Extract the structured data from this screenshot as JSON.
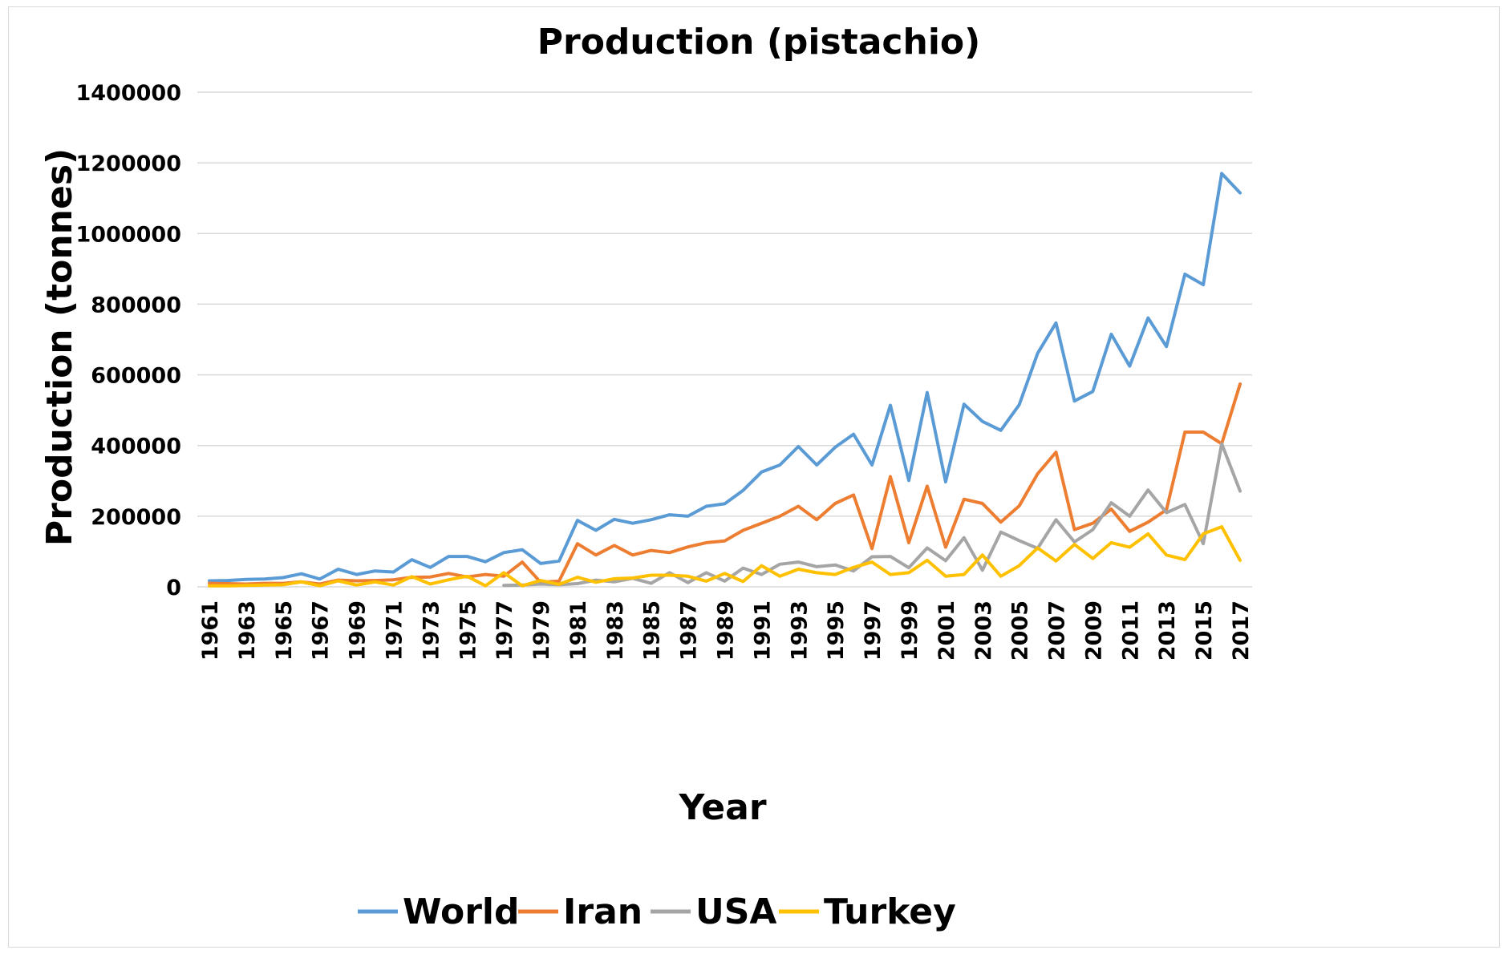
{
  "chart_data": {
    "type": "line",
    "title": "Production (pistachio)",
    "xlabel": "Year",
    "ylabel": "Production (tonnes)",
    "ylim": [
      0,
      1400000
    ],
    "yticks": [
      "0",
      "200000",
      "400000",
      "600000",
      "800000",
      "1000000",
      "1200000",
      "1400000"
    ],
    "xlim": [
      1961,
      2017
    ],
    "xticks": [
      "1961",
      "1963",
      "1965",
      "1967",
      "1969",
      "1971",
      "1973",
      "1975",
      "1977",
      "1979",
      "1981",
      "1983",
      "1985",
      "1987",
      "1989",
      "1991",
      "1993",
      "1995",
      "1997",
      "1999",
      "2001",
      "2003",
      "2005",
      "2007",
      "2009",
      "2011",
      "2013",
      "2015",
      "2017"
    ],
    "grid": "horizontal",
    "legend_position": "bottom",
    "series": [
      {
        "name": "World",
        "color": "#5b9bd5",
        "start_year": 1961,
        "values": [
          17000,
          18000,
          21000,
          22000,
          26000,
          37000,
          22000,
          50000,
          35000,
          45000,
          42000,
          77000,
          55000,
          86000,
          86000,
          71000,
          97000,
          105000,
          66000,
          73000,
          188000,
          160000,
          191000,
          180000,
          190000,
          204000,
          200000,
          228000,
          235000,
          273000,
          325000,
          345000,
          397000,
          345000,
          395000,
          432000,
          345000,
          514000,
          301000,
          550000,
          297000,
          517000,
          468000,
          443000,
          515000,
          661000,
          747000,
          526000,
          553000,
          715000,
          625000,
          761000,
          680000,
          885000,
          855000,
          1170000,
          1115000
        ]
      },
      {
        "name": "Iran",
        "color": "#ed7d31",
        "start_year": 1961,
        "values": [
          10000,
          9000,
          8000,
          10000,
          10000,
          14000,
          8000,
          19000,
          17000,
          18000,
          20000,
          27000,
          28000,
          38000,
          28000,
          35000,
          30000,
          70000,
          13000,
          16000,
          122000,
          90000,
          117000,
          90000,
          103000,
          97000,
          113000,
          125000,
          130000,
          160000,
          180000,
          200000,
          228000,
          190000,
          236000,
          260000,
          108000,
          312000,
          125000,
          285000,
          112000,
          248000,
          236000,
          183000,
          229000,
          320000,
          381000,
          162000,
          180000,
          220000,
          157000,
          183000,
          218000,
          438000,
          438000,
          405000,
          574000
        ]
      },
      {
        "name": "USA",
        "color": "#a5a5a5",
        "start_year": 1977,
        "values": [
          4000,
          5000,
          8000,
          6000,
          9000,
          19000,
          14000,
          24000,
          10000,
          40000,
          12000,
          40000,
          16000,
          53000,
          35000,
          64000,
          70000,
          57000,
          62000,
          45000,
          85000,
          86000,
          54000,
          110000,
          74000,
          139000,
          47000,
          155000,
          131000,
          109000,
          190000,
          127000,
          162000,
          238000,
          200000,
          274000,
          210000,
          233000,
          122000,
          405000,
          271000
        ]
      },
      {
        "name": "Turkey",
        "color": "#ffc000",
        "start_year": 1961,
        "values": [
          3000,
          3000,
          4000,
          5000,
          6000,
          14000,
          3000,
          17000,
          5000,
          14000,
          5000,
          29000,
          8000,
          20000,
          30000,
          3000,
          40000,
          3000,
          18000,
          7000,
          27000,
          13000,
          23000,
          25000,
          33000,
          33000,
          30000,
          16000,
          38000,
          15000,
          60000,
          30000,
          50000,
          40000,
          35000,
          55000,
          70000,
          35000,
          40000,
          75000,
          30000,
          35000,
          90000,
          30000,
          60000,
          110000,
          73000,
          120000,
          80000,
          125000,
          112000,
          150000,
          90000,
          77000,
          150000,
          170000,
          75000
        ]
      }
    ]
  }
}
